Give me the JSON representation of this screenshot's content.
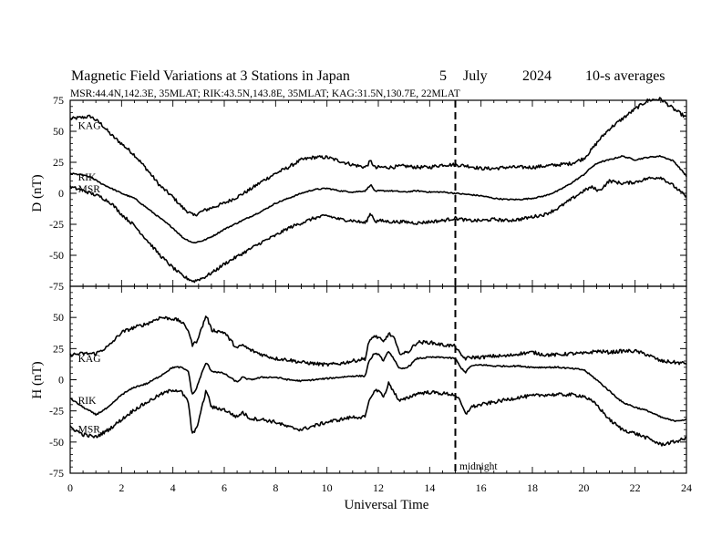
{
  "title": {
    "main": "Magnetic Field Variations at 3 Stations in Japan",
    "day": "5",
    "month": "July",
    "year": "2024",
    "averaging": "10-s averages"
  },
  "subtitle": "MSR:44.4N,142.3E, 35MLAT;  RIK:43.5N,143.8E, 35MLAT;  KAG:31.5N,130.7E, 22MLAT",
  "marker": {
    "label": "midnight",
    "x": 15
  },
  "chart_data": [
    {
      "type": "line",
      "panel": "D",
      "ylabel": "D (nT)",
      "xlabel": "",
      "xlim": [
        0,
        24
      ],
      "ylim": [
        -75,
        75
      ],
      "yticks": [
        75,
        50,
        25,
        0,
        -25,
        -50,
        -75
      ],
      "xticks": [
        0,
        2,
        4,
        6,
        8,
        10,
        12,
        14,
        16,
        18,
        20,
        22,
        24
      ],
      "series": [
        {
          "name": "KAG",
          "x": [
            0,
            0.4,
            0.8,
            1.2,
            1.6,
            2,
            2.5,
            3,
            3.5,
            4,
            4.4,
            4.8,
            5.2,
            5.6,
            6,
            6.5,
            7,
            7.5,
            8,
            8.5,
            9,
            9.5,
            10,
            10.5,
            11,
            11.5,
            11.7,
            11.9,
            12,
            12.5,
            13,
            13.5,
            14,
            14.5,
            15,
            15.5,
            16,
            16.5,
            17,
            17.5,
            18,
            18.5,
            19,
            19.5,
            20,
            20.3,
            20.6,
            21,
            21.5,
            22,
            22.5,
            23,
            23.5,
            24
          ],
          "y": [
            60,
            61,
            62,
            56,
            47,
            40,
            31,
            19,
            6,
            -3,
            -12,
            -18,
            -14,
            -11,
            -8,
            -3,
            3,
            10,
            16,
            21,
            27,
            29,
            29,
            26,
            23,
            21,
            26,
            20,
            21,
            21,
            22,
            21,
            21,
            23,
            23,
            22,
            20,
            20,
            21,
            21,
            21,
            22,
            23,
            24,
            28,
            35,
            43,
            52,
            60,
            68,
            75,
            76,
            68,
            61
          ],
          "noise": 1.4
        },
        {
          "name": "RIK",
          "x": [
            0,
            0.4,
            0.8,
            1.2,
            1.6,
            2,
            2.5,
            3,
            3.5,
            4,
            4.4,
            4.8,
            5.2,
            5.6,
            6,
            6.5,
            7,
            7.5,
            8,
            8.5,
            9,
            9.5,
            10,
            10.5,
            11,
            11.5,
            11.7,
            11.9,
            12,
            12.5,
            13,
            13.5,
            14,
            14.5,
            15,
            15.5,
            16,
            16.5,
            17,
            17.5,
            18,
            18.5,
            19,
            19.5,
            20,
            20.3,
            20.6,
            21,
            21.5,
            22,
            22.5,
            23,
            23.5,
            24
          ],
          "y": [
            16,
            15,
            13,
            8,
            4,
            0,
            -4,
            -12,
            -20,
            -28,
            -36,
            -40,
            -38,
            -34,
            -29,
            -24,
            -19,
            -14,
            -8,
            -4,
            0,
            3,
            4,
            2,
            1,
            2,
            7,
            1,
            2,
            2,
            1,
            2,
            1,
            1,
            0,
            -1,
            -2,
            -4,
            -5,
            -5,
            -4,
            -2,
            2,
            8,
            15,
            21,
            25,
            27,
            30,
            27,
            29,
            30,
            26,
            14
          ],
          "noise": 0.5
        },
        {
          "name": "MSR",
          "x": [
            0,
            0.4,
            0.8,
            1.2,
            1.6,
            2,
            2.5,
            3,
            3.5,
            4,
            4.4,
            4.8,
            5.2,
            5.6,
            6,
            6.5,
            7,
            7.5,
            8,
            8.5,
            9,
            9.5,
            10,
            10.5,
            11,
            11.5,
            11.7,
            11.9,
            12,
            12.5,
            13,
            13.5,
            14,
            14.5,
            15,
            15.5,
            16,
            16.5,
            17,
            17.5,
            18,
            18.5,
            19,
            19.5,
            20,
            20.3,
            20.6,
            21,
            21.5,
            22,
            22.5,
            23,
            23.5,
            24
          ],
          "y": [
            5,
            3,
            0,
            -3,
            -8,
            -17,
            -26,
            -38,
            -50,
            -60,
            -67,
            -71,
            -68,
            -63,
            -57,
            -51,
            -45,
            -39,
            -34,
            -28,
            -24,
            -20,
            -18,
            -21,
            -22,
            -24,
            -16,
            -23,
            -22,
            -23,
            -23,
            -24,
            -23,
            -22,
            -20,
            -22,
            -22,
            -21,
            -22,
            -21,
            -19,
            -17,
            -12,
            -5,
            2,
            5,
            2,
            10,
            8,
            9,
            12,
            13,
            6,
            -3
          ],
          "noise": 1.3
        }
      ]
    },
    {
      "type": "line",
      "panel": "H",
      "ylabel": "H (nT)",
      "xlabel": "Universal Time",
      "xlim": [
        0,
        24
      ],
      "ylim": [
        -75,
        75
      ],
      "yticks": [
        50,
        25,
        0,
        -25,
        -50,
        -75
      ],
      "xticks": [
        0,
        2,
        4,
        6,
        8,
        10,
        12,
        14,
        16,
        18,
        20,
        22,
        24
      ],
      "series": [
        {
          "name": "KAG",
          "x": [
            0,
            0.5,
            1,
            1.5,
            2,
            2.5,
            3,
            3.5,
            4,
            4.3,
            4.6,
            4.75,
            4.9,
            5.1,
            5.3,
            5.5,
            6,
            6.5,
            6.7,
            7,
            7.5,
            8,
            8.5,
            9,
            9.5,
            10,
            10.5,
            11,
            11.5,
            11.6,
            11.8,
            12,
            12.2,
            12.4,
            12.6,
            12.8,
            13,
            13.2,
            13.5,
            14,
            14.5,
            15,
            15.2,
            15.4,
            15.6,
            16,
            16.5,
            17,
            17.5,
            18,
            18.5,
            19,
            19.5,
            20,
            20.5,
            21,
            21.5,
            22,
            22.5,
            23,
            23.5,
            24
          ],
          "y": [
            20,
            21,
            21,
            27,
            38,
            42,
            45,
            50,
            49,
            47,
            40,
            28,
            30,
            40,
            52,
            40,
            38,
            25,
            28,
            24,
            20,
            17,
            16,
            14,
            13,
            12,
            13,
            15,
            17,
            28,
            35,
            34,
            30,
            37,
            34,
            22,
            21,
            23,
            30,
            30,
            28,
            27,
            20,
            17,
            18,
            18,
            19,
            19,
            21,
            22,
            20,
            20,
            21,
            21,
            23,
            22,
            23,
            23,
            20,
            15,
            14,
            13
          ],
          "noise": 1.4
        },
        {
          "name": "RIK",
          "x": [
            0,
            0.5,
            1,
            1.5,
            2,
            2.5,
            3,
            3.5,
            4,
            4.3,
            4.6,
            4.75,
            4.9,
            5.1,
            5.3,
            5.5,
            6,
            6.5,
            6.7,
            7,
            7.5,
            8,
            8.5,
            9,
            9.5,
            10,
            10.5,
            11,
            11.5,
            11.6,
            11.8,
            12,
            12.2,
            12.4,
            12.6,
            12.8,
            13,
            13.2,
            13.5,
            14,
            14.5,
            15,
            15.2,
            15.4,
            15.6,
            16,
            16.5,
            17,
            17.5,
            18,
            18.5,
            19,
            19.5,
            20,
            20.5,
            21,
            21.5,
            22,
            22.5,
            23,
            23.5,
            24
          ],
          "y": [
            -15,
            -22,
            -28,
            -22,
            -12,
            -6,
            -3,
            3,
            10,
            10,
            7,
            -12,
            -8,
            4,
            14,
            7,
            5,
            -2,
            2,
            0,
            2,
            2,
            0,
            -1,
            0,
            1,
            2,
            3,
            3,
            13,
            20,
            21,
            15,
            23,
            17,
            9,
            9,
            11,
            17,
            18,
            18,
            17,
            10,
            6,
            11,
            12,
            11,
            11,
            11,
            10,
            10,
            10,
            9,
            8,
            0,
            -9,
            -18,
            -22,
            -25,
            -30,
            -33,
            -32
          ],
          "noise": 0.6
        },
        {
          "name": "MSR",
          "x": [
            0,
            0.5,
            1,
            1.5,
            2,
            2.5,
            3,
            3.5,
            4,
            4.3,
            4.6,
            4.75,
            4.9,
            5.1,
            5.3,
            5.5,
            6,
            6.5,
            6.7,
            7,
            7.5,
            8,
            8.5,
            9,
            9.5,
            10,
            10.5,
            11,
            11.5,
            11.6,
            11.8,
            12,
            12.2,
            12.4,
            12.6,
            12.8,
            13,
            13.2,
            13.5,
            14,
            14.5,
            15,
            15.2,
            15.4,
            15.6,
            16,
            16.5,
            17,
            17.5,
            18,
            18.5,
            19,
            19.5,
            20,
            20.5,
            21,
            21.5,
            22,
            22.5,
            23,
            23.5,
            24
          ],
          "y": [
            -38,
            -44,
            -46,
            -40,
            -32,
            -24,
            -18,
            -12,
            -8,
            -9,
            -18,
            -44,
            -40,
            -25,
            -8,
            -22,
            -24,
            -30,
            -26,
            -31,
            -32,
            -34,
            -38,
            -40,
            -37,
            -34,
            -32,
            -30,
            -30,
            -20,
            -10,
            -8,
            -14,
            -3,
            -9,
            -17,
            -16,
            -14,
            -11,
            -10,
            -11,
            -12,
            -18,
            -28,
            -22,
            -20,
            -18,
            -16,
            -14,
            -13,
            -12,
            -12,
            -12,
            -13,
            -20,
            -32,
            -40,
            -43,
            -47,
            -52,
            -50,
            -47
          ],
          "noise": 1.4
        }
      ]
    }
  ]
}
